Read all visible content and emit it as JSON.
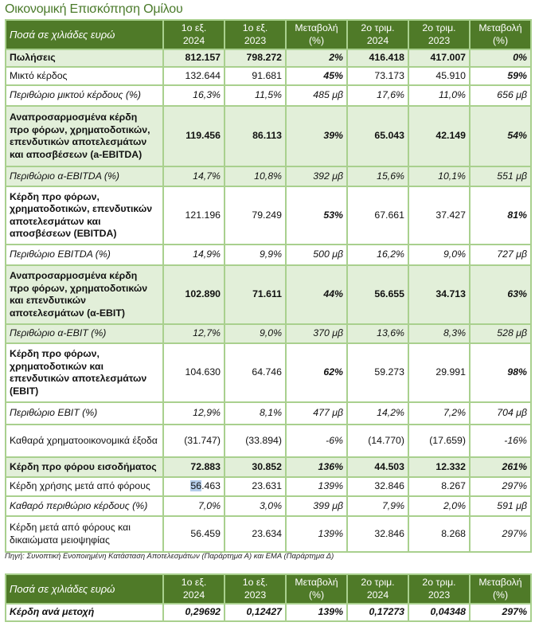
{
  "title": "Οικονομική Επισκόπηση Ομίλου",
  "headers": [
    "Ποσά σε χιλιάδες ευρώ",
    "1ο εξ.\n2024",
    "1ο εξ.\n2023",
    "Μεταβολή\n(%)",
    "2ο τριμ.\n2024",
    "2ο τριμ.\n2023",
    "Μεταβολή\n(%)"
  ],
  "rows": [
    {
      "label": "Πωλήσεις",
      "values": [
        "812.157",
        "798.272",
        "2%",
        "416.418",
        "417.007",
        "0%"
      ],
      "hl": true,
      "bl": true,
      "bv": true,
      "h": 22
    },
    {
      "label": "Μικτό κέρδος",
      "values": [
        "132.644",
        "91.681",
        "45%",
        "73.173",
        "45.910",
        "59%"
      ],
      "h": 23,
      "bp": true
    },
    {
      "label": "Περιθώριο μικτού κέρδους (%)",
      "values": [
        "16,3%",
        "11,5%",
        "485 μβ",
        "17,6%",
        "11,0%",
        "656 μβ"
      ],
      "it": true,
      "h": 26
    },
    {
      "label": "Αναπροσαρμοσμένα κέρδη προ φόρων, χρηματοδοτικών, επενδυτικών αποτελεσμάτων και αποσβέσεων (a-EBITDA)",
      "values": [
        "119.456",
        "86.113",
        "39%",
        "65.043",
        "42.149",
        "54%"
      ],
      "hl": true,
      "bl": true,
      "bv": true,
      "h": 76
    },
    {
      "label": "Περιθώριο α-EBITDA (%)",
      "values": [
        "14,7%",
        "10,8%",
        "392 μβ",
        "15,6%",
        "10,1%",
        "551 μβ"
      ],
      "it": true,
      "hl": true,
      "h": 25
    },
    {
      "label": "Κέρδη προ φόρων, χρηματοδοτικών, επενδυτικών αποτελεσμάτων και αποσβέσεων (EBITDA)",
      "values": [
        "121.196",
        "79.249",
        "53%",
        "67.661",
        "37.427",
        "81%"
      ],
      "bl": true,
      "bp": true,
      "h": 73
    },
    {
      "label": "Περιθώριο EBITDA (%)",
      "values": [
        "14,9%",
        "9,9%",
        "500 μβ",
        "16,2%",
        "9,0%",
        "727 μβ"
      ],
      "it": true,
      "h": 26
    },
    {
      "label": "Αναπροσαρμοσμένα κέρδη προ φόρων, χρηματοδοτικών και επενδυτικών αποτελεσμάτων (α-EBIT)",
      "values": [
        "102.890",
        "71.611",
        "44%",
        "56.655",
        "34.713",
        "63%"
      ],
      "hl": true,
      "bl": true,
      "bv": true,
      "h": 74
    },
    {
      "label": "Περιθώριο α-EBIT (%)",
      "values": [
        "12,7%",
        "9,0%",
        "370 μβ",
        "13,6%",
        "8,3%",
        "528 μβ"
      ],
      "it": true,
      "hl": true,
      "h": 24
    },
    {
      "label": "Κέρδη προ φόρων, χρηματοδοτικών και επενδυτικών αποτελεσμάτων (EBIT)",
      "values": [
        "104.630",
        "64.746",
        "62%",
        "59.273",
        "29.991",
        "98%"
      ],
      "bl": true,
      "bp": true,
      "h": 74
    },
    {
      "label": "Περιθώριο EBIT (%)",
      "values": [
        "12,9%",
        "8,1%",
        "477 μβ",
        "14,2%",
        "7,2%",
        "704 μβ"
      ],
      "it": true,
      "h": 28
    },
    {
      "label": "Καθαρά χρηματοοικονομικά έξοδα",
      "values": [
        "(31.747)",
        "(33.894)",
        "-6%",
        "(14.770)",
        "(17.659)",
        "-16%"
      ],
      "h": 41
    },
    {
      "label": "Κέρδη προ φόρου εισοδήματος",
      "values": [
        "72.883",
        "30.852",
        "136%",
        "44.503",
        "12.332",
        "261%"
      ],
      "hl": true,
      "bl": true,
      "bv": true,
      "h": 25
    },
    {
      "label": "Κέρδη χρήσης μετά από φόρους",
      "values": [
        "56.463",
        "23.631",
        "139%",
        "32.846",
        "8.267",
        "297%"
      ],
      "h": 24,
      "selected": "56"
    },
    {
      "label": "Καθαρό περιθώριο κέρδους (%)",
      "values": [
        "7,0%",
        "3,0%",
        "399 μβ",
        "7,9%",
        "2,0%",
        "591 μβ"
      ],
      "it": true,
      "h": 25
    },
    {
      "label": "Κέρδη μετά από φόρους και δικαιώματα μειοψηφίας",
      "values": [
        "56.459",
        "23.634",
        "139%",
        "32.846",
        "8.268",
        "297%"
      ],
      "h": 45
    }
  ],
  "source": "Πηγή: Συνοπτική Ενοποιημένη Κατάσταση Αποτελεσμάτων (Παράρτημα Α) και ΕΜΑ (Παράρτημα Δ)",
  "eps": {
    "headers": [
      "Ποσά σε χιλιάδες ευρώ",
      "1ο εξ.\n2024",
      "1ο εξ.\n2023",
      "Μεταβολή\n(%)",
      "2ο τριμ.\n2024",
      "2ο τριμ.\n2023",
      "Μεταβολή\n(%)"
    ],
    "label": "Κέρδη ανά μετοχή",
    "values": [
      "0,29692",
      "0,12427",
      "139%",
      "0,17273",
      "0,04348",
      "297%"
    ]
  }
}
